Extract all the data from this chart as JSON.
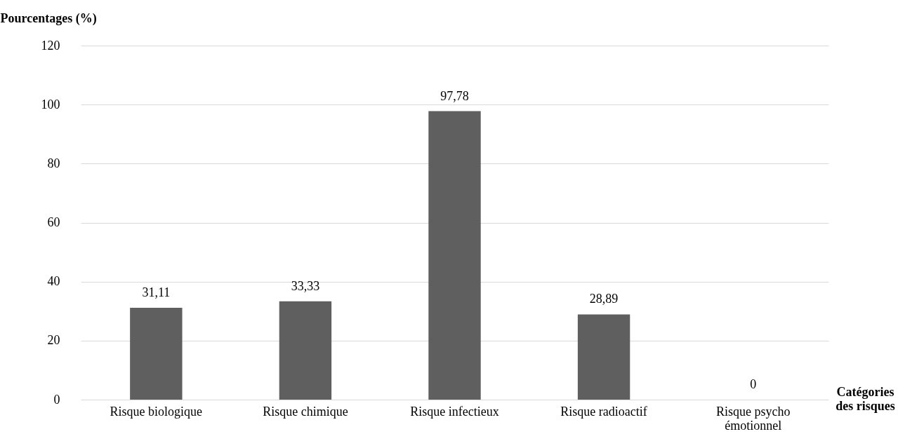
{
  "chart_data": {
    "type": "bar",
    "categories": [
      "Risque biologique",
      "Risque chimique",
      "Risque infectieux",
      "Risque radioactif",
      "Risque psycho émotionnel"
    ],
    "values": [
      31.11,
      33.33,
      97.78,
      28.89,
      0
    ],
    "value_labels": [
      "31,11",
      "33,33",
      "97,78",
      "28,89",
      "0"
    ],
    "color": "#5f5f5f",
    "ylabel": "Pourcentages (%)",
    "xlabel": "Catégories des risques",
    "ylim": [
      0,
      120
    ],
    "yticks": [
      0,
      20,
      40,
      60,
      80,
      100,
      120
    ],
    "grid": "y"
  }
}
